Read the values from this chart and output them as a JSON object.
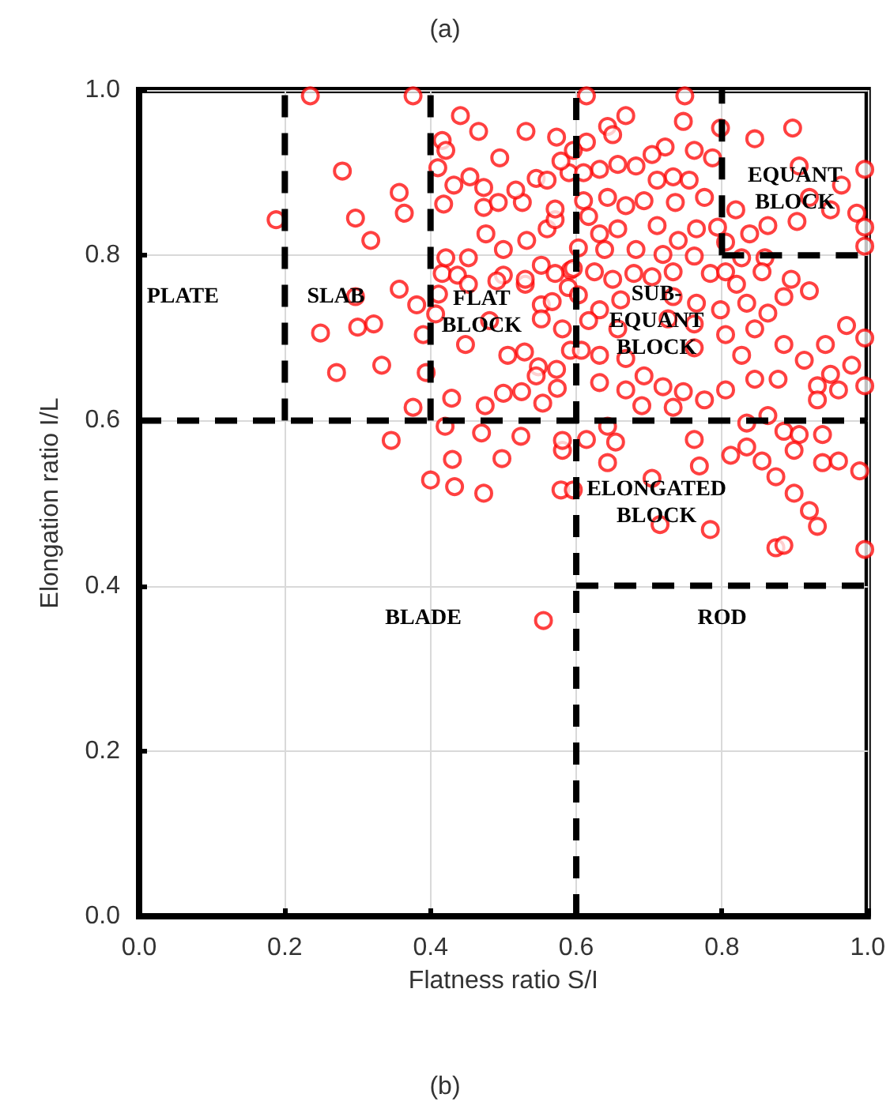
{
  "chart_data": {
    "type": "scatter",
    "title": "(a)",
    "xlabel": "Flatness ratio S/I",
    "ylabel": "Elongation ratio I/L",
    "xlim": [
      0,
      1
    ],
    "ylim": [
      0,
      1
    ],
    "xticks": [
      {
        "value": 0,
        "label": "0.0"
      },
      {
        "value": 0.2,
        "label": "0.2"
      },
      {
        "value": 0.4,
        "label": "0.4"
      },
      {
        "value": 0.6,
        "label": "0.6"
      },
      {
        "value": 0.8,
        "label": "0.8"
      },
      {
        "value": 1,
        "label": "1.0"
      }
    ],
    "yticks": [
      {
        "value": 0,
        "label": "0.0"
      },
      {
        "value": 0.2,
        "label": "0.2"
      },
      {
        "value": 0.4,
        "label": "0.4"
      },
      {
        "value": 0.6,
        "label": "0.6"
      },
      {
        "value": 0.8,
        "label": "0.8"
      },
      {
        "value": 1,
        "label": "1.0"
      }
    ],
    "grid": true,
    "marker": "circle",
    "series": [
      {
        "color": "#ff0000",
        "x": [
          0.235,
          0.376,
          0.279,
          0.357,
          0.297,
          0.364,
          0.318,
          0.188,
          0.357,
          0.297,
          0.3,
          0.322,
          0.249,
          0.381,
          0.39,
          0.333,
          0.271,
          0.394,
          0.376,
          0.346,
          0.4,
          0.433,
          0.473,
          0.43,
          0.498,
          0.47,
          0.524,
          0.42,
          0.429,
          0.475,
          0.5,
          0.525,
          0.554,
          0.574,
          0.579,
          0.581,
          0.548,
          0.573,
          0.506,
          0.481,
          0.448,
          0.411,
          0.407,
          0.416,
          0.437,
          0.452,
          0.5,
          0.53,
          0.552,
          0.421,
          0.452,
          0.5,
          0.532,
          0.476,
          0.56,
          0.571,
          0.418,
          0.473,
          0.493,
          0.526,
          0.571,
          0.432,
          0.454,
          0.473,
          0.517,
          0.545,
          0.56,
          0.59,
          0.41,
          0.495,
          0.579,
          0.416,
          0.421,
          0.466,
          0.441,
          0.531,
          0.573,
          0.552,
          0.567,
          0.589,
          0.592,
          0.571,
          0.53,
          0.491,
          0.552,
          0.581,
          0.592,
          0.529,
          0.545,
          0.581,
          0.614,
          0.749,
          0.668,
          0.643,
          0.65,
          0.747,
          0.798,
          0.897,
          0.845,
          0.614,
          0.596,
          0.722,
          0.704,
          0.762,
          0.787,
          0.682,
          0.657,
          0.632,
          0.61,
          0.733,
          0.755,
          0.711,
          0.906,
          0.996,
          0.964,
          0.92,
          0.61,
          0.643,
          0.668,
          0.693,
          0.736,
          0.776,
          0.819,
          0.863,
          0.903,
          0.949,
          0.985,
          0.996,
          0.996,
          0.838,
          0.805,
          0.617,
          0.657,
          0.632,
          0.711,
          0.74,
          0.765,
          0.794,
          0.603,
          0.639,
          0.682,
          0.719,
          0.762,
          0.827,
          0.859,
          0.596,
          0.625,
          0.65,
          0.679,
          0.704,
          0.733,
          0.784,
          0.805,
          0.855,
          0.895,
          0.82,
          0.885,
          0.92,
          0.603,
          0.632,
          0.661,
          0.733,
          0.765,
          0.798,
          0.834,
          0.863,
          0.617,
          0.657,
          0.726,
          0.762,
          0.805,
          0.845,
          0.885,
          0.942,
          0.971,
          0.996,
          0.607,
          0.632,
          0.668,
          0.762,
          0.827,
          0.913,
          0.949,
          0.978,
          0.632,
          0.668,
          0.693,
          0.719,
          0.747,
          0.776,
          0.805,
          0.845,
          0.877,
          0.931,
          0.96,
          0.996,
          0.931,
          0.69,
          0.733,
          0.614,
          0.654,
          0.643,
          0.762,
          0.834,
          0.863,
          0.885,
          0.906,
          0.938,
          0.899,
          0.834,
          0.855,
          0.812,
          0.769,
          0.938,
          0.96,
          0.989,
          0.643,
          0.704,
          0.874,
          0.899,
          0.92,
          0.931,
          0.874,
          0.885,
          0.996,
          0.784,
          0.715,
          0.596,
          0.555
        ],
        "values": [
          0.993,
          0.993,
          0.902,
          0.876,
          0.845,
          0.851,
          0.818,
          0.843,
          0.759,
          0.75,
          0.713,
          0.717,
          0.706,
          0.74,
          0.704,
          0.667,
          0.658,
          0.658,
          0.616,
          0.576,
          0.528,
          0.52,
          0.512,
          0.553,
          0.554,
          0.585,
          0.581,
          0.593,
          0.627,
          0.618,
          0.633,
          0.635,
          0.621,
          0.639,
          0.516,
          0.564,
          0.665,
          0.662,
          0.679,
          0.721,
          0.692,
          0.753,
          0.729,
          0.778,
          0.776,
          0.765,
          0.776,
          0.765,
          0.788,
          0.797,
          0.797,
          0.807,
          0.818,
          0.826,
          0.832,
          0.843,
          0.862,
          0.858,
          0.864,
          0.864,
          0.856,
          0.885,
          0.895,
          0.882,
          0.879,
          0.893,
          0.891,
          0.9,
          0.906,
          0.918,
          0.914,
          0.939,
          0.927,
          0.95,
          0.969,
          0.95,
          0.943,
          0.74,
          0.744,
          0.761,
          0.782,
          0.778,
          0.771,
          0.769,
          0.723,
          0.711,
          0.685,
          0.683,
          0.654,
          0.576,
          0.993,
          0.993,
          0.969,
          0.956,
          0.946,
          0.962,
          0.954,
          0.954,
          0.941,
          0.937,
          0.927,
          0.931,
          0.922,
          0.927,
          0.918,
          0.908,
          0.91,
          0.904,
          0.9,
          0.895,
          0.891,
          0.891,
          0.908,
          0.904,
          0.885,
          0.87,
          0.866,
          0.87,
          0.86,
          0.866,
          0.864,
          0.87,
          0.855,
          0.836,
          0.841,
          0.855,
          0.851,
          0.834,
          0.811,
          0.826,
          0.816,
          0.847,
          0.832,
          0.826,
          0.836,
          0.818,
          0.832,
          0.834,
          0.809,
          0.807,
          0.807,
          0.801,
          0.799,
          0.797,
          0.797,
          0.784,
          0.78,
          0.771,
          0.778,
          0.774,
          0.78,
          0.778,
          0.78,
          0.78,
          0.771,
          0.765,
          0.75,
          0.757,
          0.752,
          0.734,
          0.746,
          0.75,
          0.742,
          0.734,
          0.742,
          0.73,
          0.721,
          0.711,
          0.723,
          0.717,
          0.704,
          0.711,
          0.692,
          0.692,
          0.715,
          0.7,
          0.685,
          0.679,
          0.675,
          0.688,
          0.679,
          0.673,
          0.656,
          0.667,
          0.646,
          0.637,
          0.654,
          0.641,
          0.635,
          0.625,
          0.637,
          0.65,
          0.65,
          0.642,
          0.637,
          0.642,
          0.625,
          0.618,
          0.616,
          0.577,
          0.574,
          0.593,
          0.577,
          0.597,
          0.606,
          0.587,
          0.583,
          0.583,
          0.564,
          0.568,
          0.551,
          0.558,
          0.545,
          0.549,
          0.551,
          0.539,
          0.549,
          0.53,
          0.532,
          0.512,
          0.491,
          0.472,
          0.446,
          0.449,
          0.444,
          0.468,
          0.474,
          0.516,
          0.358
        ]
      },
      {
        "type": "line",
        "color": "#000000",
        "marker": "none",
        "line_style": "dashed",
        "x": [
          0.2,
          0.2
        ],
        "values": [
          0.6,
          1
        ]
      },
      {
        "type": "line",
        "color": "#000000",
        "marker": "none",
        "line_style": "dashed",
        "x": [
          0.4,
          0.4
        ],
        "values": [
          0.6,
          1
        ]
      },
      {
        "type": "line",
        "color": "#000000",
        "marker": "none",
        "line_style": "dashed",
        "x": [
          0,
          1
        ],
        "values": [
          0.6,
          0.6
        ]
      },
      {
        "type": "line",
        "color": "#000000",
        "marker": "none",
        "line_style": "dashed",
        "x": [
          0.6,
          0.6
        ],
        "values": [
          0,
          1
        ]
      },
      {
        "type": "line",
        "color": "#000000",
        "marker": "none",
        "line_style": "dashed",
        "x": [
          0.8,
          0.8
        ],
        "values": [
          0.8,
          1
        ]
      },
      {
        "type": "line",
        "color": "#000000",
        "marker": "none",
        "line_style": "dashed",
        "x": [
          0.8,
          1
        ],
        "values": [
          0.8,
          0.8
        ]
      },
      {
        "type": "line",
        "color": "#000000",
        "marker": "none",
        "line_style": "dashed",
        "x": [
          0.6,
          1
        ],
        "values": [
          0.4,
          0.4
        ]
      }
    ],
    "annotations": [
      "PLATE",
      "SLAB",
      "FLAT\nBLOCK",
      "SUB-\nEQUANT\nBLOCK",
      "EQUANT\nBLOCK",
      "ELONGATED\nBLOCK",
      "BLADE",
      "ROD",
      "(b)"
    ]
  }
}
